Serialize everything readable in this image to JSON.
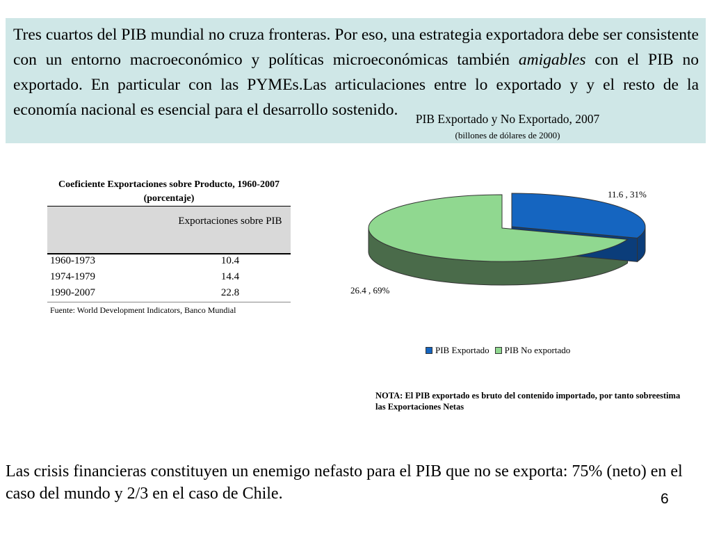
{
  "top_box": {
    "text_before_italic": "Tres cuartos del PIB mundial no cruza fronteras. Por eso, una estrategia exportadora debe ser consistente con un entorno macroeconómico y políticas microeconómicas también ",
    "italic_word": "amigables",
    "text_after_italic": " con el PIB no exportado. En particular con las PYMEs.Las articulaciones entre lo exportado y y el resto de la economía nacional es esencial para el desarrollo sostenido."
  },
  "table": {
    "caption": "Coeficiente Exportaciones sobre Producto, 1960-2007 (porcentaje)",
    "column_header": "Exportaciones sobre PIB",
    "source": "Fuente: World Development Indicators, Banco Mundial"
  },
  "note": "NOTA: El PIB exportado es bruto del contenido importado, por tanto sobreestima las Exportaciones Netas",
  "bottom_text": "Las crisis financieras constituyen un enemigo nefasto para el PIB que no se exporta: 75% (neto) en el caso del mundo y 2/3 en el caso de Chile.",
  "page_number": "6",
  "colors": {
    "top_box_bg": "#cfe7e7",
    "exported_top": "#1565c0",
    "exported_side": "#0b3d7a",
    "not_exported_top": "#90d890",
    "not_exported_side": "#4a6b4a"
  },
  "chart_data": [
    {
      "type": "table",
      "title": "Coeficiente Exportaciones sobre Producto, 1960-2007 (porcentaje)",
      "columns": [
        "",
        "Exportaciones sobre PIB"
      ],
      "rows": [
        {
          "period": "1960-1973",
          "value": "10.4"
        },
        {
          "period": "1974-1979",
          "value": "14.4"
        },
        {
          "period": "1990-2007",
          "value": "22.8"
        }
      ]
    },
    {
      "type": "pie",
      "title": "PIB Exportado y No Exportado, 2007",
      "subtitle": "(billones de dólares de 2000)",
      "legend_position": "bottom",
      "slices": [
        {
          "name": "PIB Exportado",
          "value": 11.6,
          "percent": 31,
          "label": "11.6 , 31%"
        },
        {
          "name": "PIB No exportado",
          "value": 26.4,
          "percent": 69,
          "label": "26.4 , 69%"
        }
      ]
    }
  ]
}
